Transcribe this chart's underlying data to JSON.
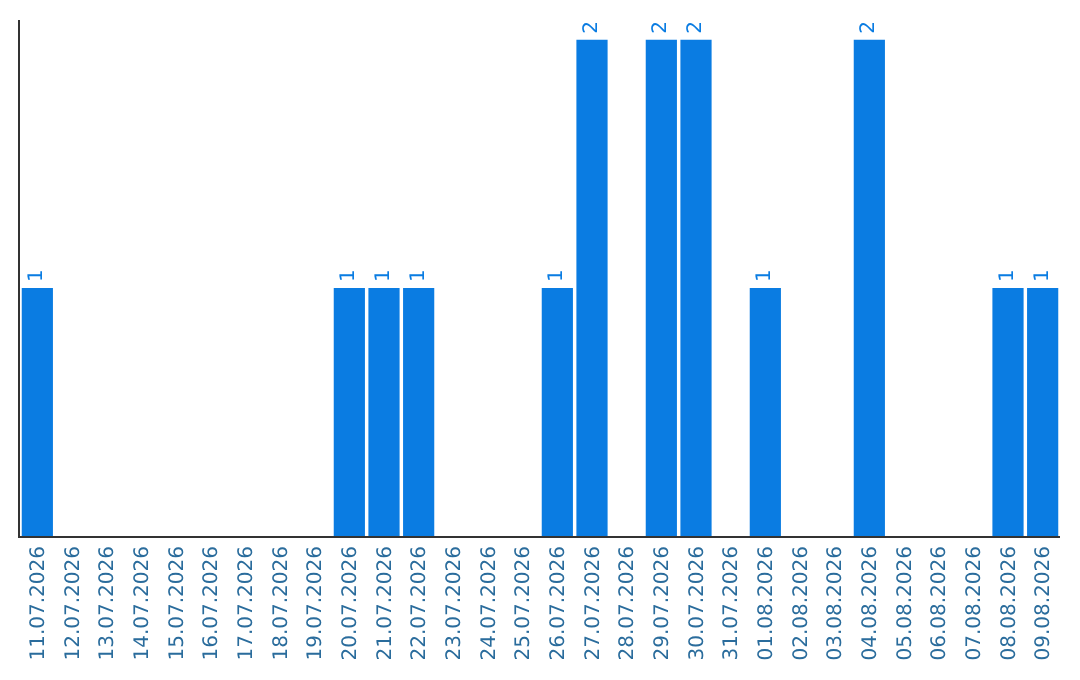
{
  "chart_data": {
    "type": "bar",
    "categories": [
      "11.07.2026",
      "12.07.2026",
      "13.07.2026",
      "14.07.2026",
      "15.07.2026",
      "16.07.2026",
      "17.07.2026",
      "18.07.2026",
      "19.07.2026",
      "20.07.2026",
      "21.07.2026",
      "22.07.2026",
      "23.07.2026",
      "24.07.2026",
      "25.07.2026",
      "26.07.2026",
      "27.07.2026",
      "28.07.2026",
      "29.07.2026",
      "30.07.2026",
      "31.07.2026",
      "01.08.2026",
      "02.08.2026",
      "03.08.2026",
      "04.08.2026",
      "05.08.2026",
      "06.08.2026",
      "07.08.2026",
      "08.08.2026",
      "09.08.2026"
    ],
    "values": [
      1,
      0,
      0,
      0,
      0,
      0,
      0,
      0,
      0,
      1,
      1,
      1,
      0,
      0,
      0,
      1,
      2,
      0,
      2,
      2,
      0,
      1,
      0,
      0,
      2,
      0,
      0,
      0,
      1,
      1
    ],
    "value_labels": [
      "1",
      null,
      null,
      null,
      null,
      null,
      null,
      null,
      null,
      "1",
      "1",
      "1",
      null,
      null,
      null,
      "1",
      "2",
      null,
      "2",
      "2",
      null,
      "1",
      null,
      null,
      "2",
      null,
      null,
      null,
      "1",
      "1"
    ],
    "color": "#0a7ce2",
    "ylim": [
      0,
      2.08
    ],
    "tick_labels": "x"
  }
}
